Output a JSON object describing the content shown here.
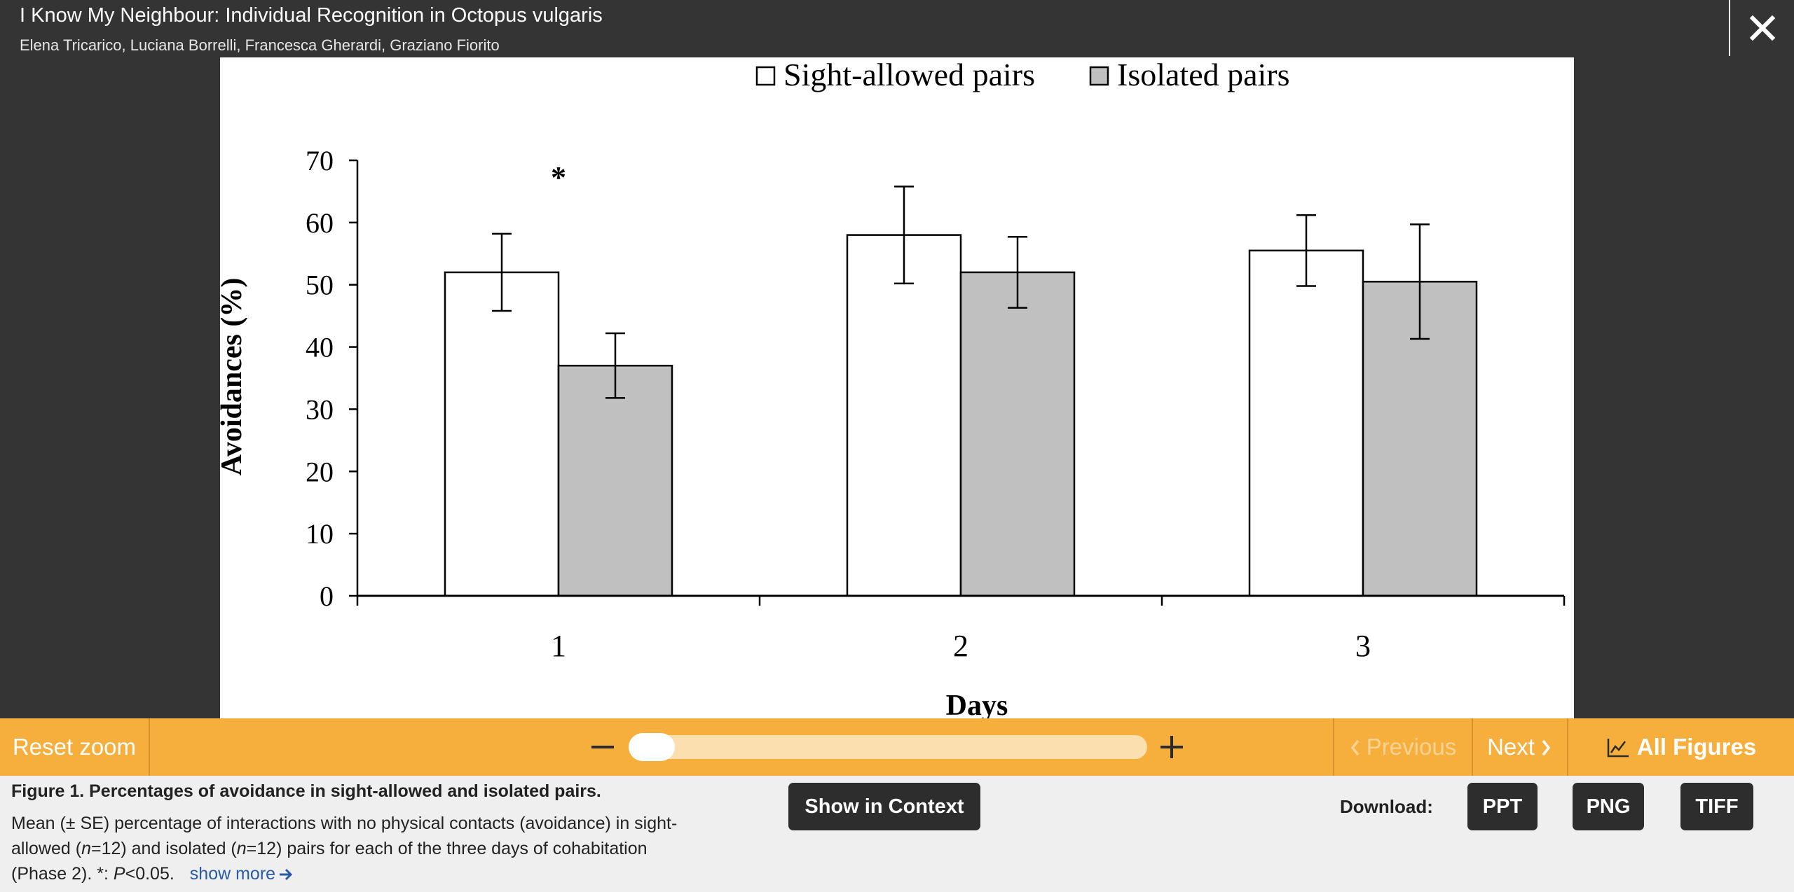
{
  "header": {
    "title": "I Know My Neighbour: Individual Recognition in Octopus vulgaris",
    "authors": "Elena Tricarico,  Luciana Borrelli,  Francesca Gherardi,  Graziano Fiorito"
  },
  "close_icon": "close-icon",
  "chart_data": {
    "type": "bar",
    "categories": [
      "1",
      "2",
      "3"
    ],
    "series": [
      {
        "name": "Sight-allowed pairs",
        "values": [
          52,
          58,
          55.5
        ],
        "errors": [
          6.2,
          7.8,
          5.7
        ],
        "color": "#ffffff"
      },
      {
        "name": "Isolated pairs",
        "values": [
          37,
          52,
          50.5
        ],
        "errors": [
          5.2,
          5.7,
          9.2
        ],
        "color": "#c0c0c0"
      }
    ],
    "annotations": [
      {
        "category": "1",
        "text": "*"
      }
    ],
    "xlabel": "Days",
    "ylabel": "Avoidances (%)",
    "ylim": [
      0,
      70
    ],
    "yticks": [
      0,
      10,
      20,
      30,
      40,
      50,
      60,
      70
    ],
    "legend": "top-center",
    "grid": false
  },
  "toolbar": {
    "reset_zoom": "Reset zoom",
    "zoom_level": 0,
    "minus_icon": "minus-icon",
    "plus_icon": "plus-icon",
    "previous": "Previous",
    "next": "Next",
    "all_figures": "All Figures",
    "chart_icon": "chart-icon"
  },
  "caption": {
    "title": "Figure 1. Percentages of avoidance in sight-allowed and isolated pairs.",
    "body_pre": "Mean (± SE) percentage of interactions with no physical contacts (avoidance) in sight-allowed (",
    "n": "n",
    "eq1": "=12) and isolated (",
    "eq2": "=12) pairs for each of the three days of cohabitation (Phase 2). *: ",
    "p": "P",
    "body_post": "<0.05.",
    "show_more": "show more"
  },
  "buttons": {
    "show_in_context": "Show in Context",
    "download_label": "Download:",
    "ppt": "PPT",
    "png": "PNG",
    "tiff": "TIFF"
  }
}
